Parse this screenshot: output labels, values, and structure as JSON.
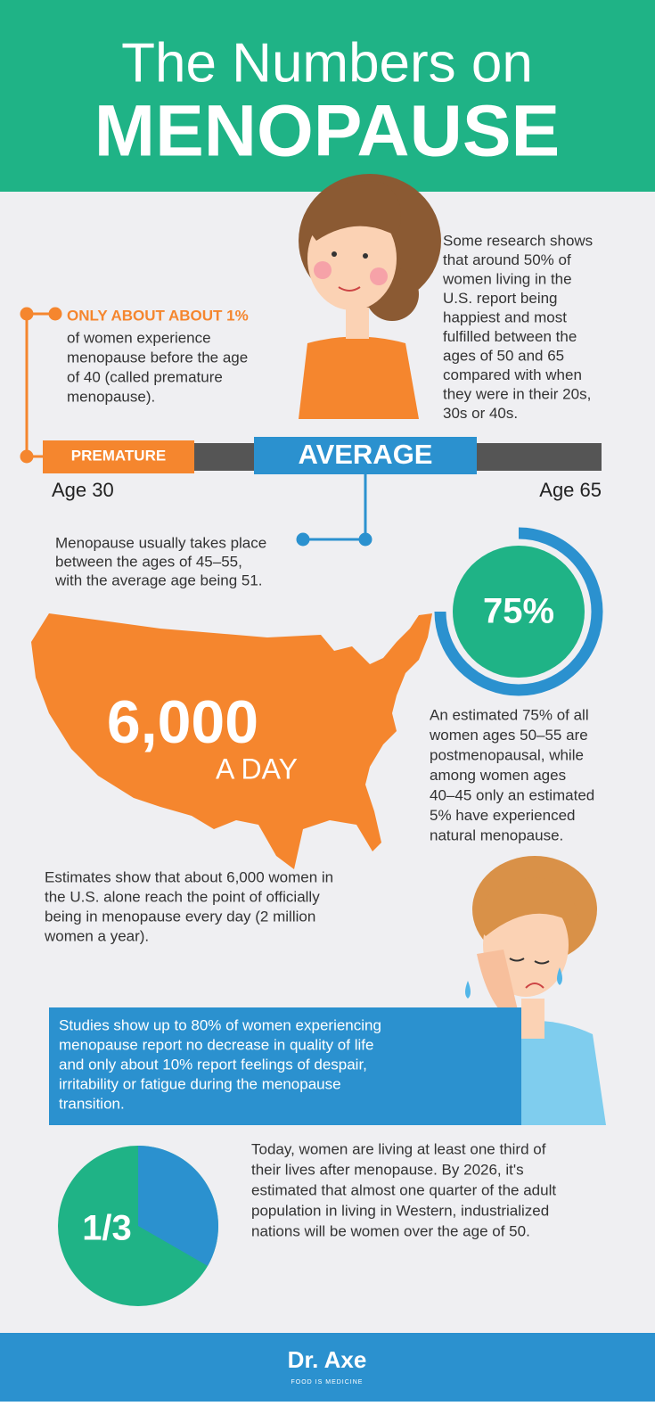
{
  "header": {
    "line1": "The Numbers on",
    "line2": "MENOPAUSE"
  },
  "premature": {
    "highlight": "ONLY ABOUT ABOUT 1%",
    "lines": [
      "of women experience",
      "menopause before the age",
      "of 40 (called premature",
      "menopause)."
    ]
  },
  "happiness": {
    "lines": [
      "Some research shows",
      "that around 50% of",
      "women living in the",
      "U.S. report being",
      "happiest and most",
      "fulfilled between the",
      "ages of 50 and 65",
      "compared with when",
      "they were in their 20s,",
      "30s or 40s."
    ]
  },
  "timeline": {
    "premature": "PREMATURE",
    "average": "AVERAGE",
    "start": "Age 30",
    "end": "Age 65"
  },
  "average": {
    "lines": [
      "Menopause usually takes place",
      "between the ages of 45–55,",
      "with the average age being 51."
    ]
  },
  "ring": {
    "value": 75,
    "label": "75%"
  },
  "ring_text": {
    "lines": [
      "An estimated 75% of all",
      "women ages 50–55 are",
      "postmenopausal, while",
      "among women ages",
      "40–45 only an estimated",
      "5% have experienced",
      "natural menopause."
    ]
  },
  "map": {
    "number": "6,000",
    "unit": "A DAY"
  },
  "daily": {
    "lines": [
      "Estimates show that about 6,000 women  in",
      "the U.S. alone reach the point of officially",
      "being in menopause every day (2 million",
      "women a year)."
    ]
  },
  "studies": {
    "lines": [
      "Studies show up to 80% of women experiencing",
      "menopause report no decrease in quality of life",
      "and only about 10% report feelings of despair,",
      "irritability or fatigue during the menopause",
      "transition."
    ]
  },
  "pie": {
    "value": 0.333,
    "label": "1/3"
  },
  "pie_text": {
    "lines": [
      "Today, women are living at least one third of",
      "their lives after menopause. By 2026, it's",
      "estimated that almost one quarter of the adult",
      "population in living in Western, industrialized",
      "nations will be women over the age of 50."
    ]
  },
  "footer": {
    "brand": "Dr. Axe",
    "tagline": "FOOD IS MEDICINE"
  }
}
